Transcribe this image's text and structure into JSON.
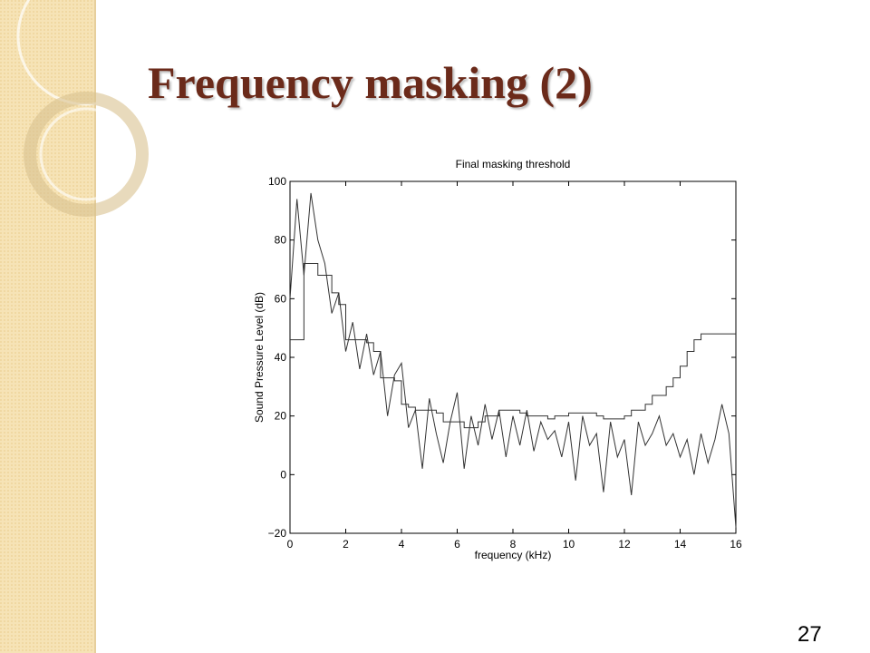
{
  "slide": {
    "title": "Frequency masking (2)",
    "page_number": "27"
  },
  "chart_data": {
    "type": "line",
    "title": "Final masking threshold",
    "xlabel": "frequency (kHz)",
    "ylabel": "Sound Pressure Level (dB)",
    "x": [
      0,
      0.25,
      0.5,
      0.75,
      1,
      1.25,
      1.5,
      1.75,
      2,
      2.25,
      2.5,
      2.75,
      3,
      3.25,
      3.5,
      3.75,
      4,
      4.25,
      4.5,
      4.75,
      5,
      5.25,
      5.5,
      5.75,
      6,
      6.25,
      6.5,
      6.75,
      7,
      7.25,
      7.5,
      7.75,
      8,
      8.25,
      8.5,
      8.75,
      9,
      9.25,
      9.5,
      9.75,
      10,
      10.25,
      10.5,
      10.75,
      11,
      11.25,
      11.5,
      11.75,
      12,
      12.25,
      12.5,
      12.75,
      13,
      13.25,
      13.5,
      13.75,
      14,
      14.25,
      14.5,
      14.75,
      15,
      15.25,
      15.5,
      15.75,
      16
    ],
    "series": [
      {
        "color": "#333333",
        "drawstyle": "steps-post",
        "values": [
          46,
          46,
          72,
          72,
          68,
          68,
          62,
          58,
          46,
          46,
          46,
          45,
          42,
          33,
          33,
          32,
          24,
          23,
          22,
          22,
          22,
          21,
          18,
          18,
          18,
          16,
          16,
          18,
          20,
          20,
          22,
          22,
          22,
          21,
          20,
          20,
          20,
          19,
          20,
          20,
          21,
          21,
          21,
          21,
          20,
          19,
          19,
          19,
          20,
          22,
          22,
          24,
          27,
          27,
          30,
          33,
          37,
          42,
          46,
          48,
          48,
          48,
          48,
          48,
          48
        ]
      },
      {
        "color": "#333333",
        "drawstyle": "linear",
        "values": [
          60,
          94,
          68,
          96,
          80,
          72,
          55,
          62,
          42,
          52,
          36,
          48,
          34,
          42,
          20,
          34,
          38,
          16,
          22,
          2,
          26,
          14,
          4,
          18,
          28,
          2,
          20,
          10,
          24,
          12,
          22,
          6,
          20,
          10,
          22,
          8,
          18,
          12,
          15,
          6,
          18,
          -2,
          20,
          10,
          14,
          -6,
          18,
          6,
          12,
          -7,
          18,
          10,
          14,
          20,
          10,
          14,
          6,
          12,
          0,
          14,
          4,
          12,
          24,
          14,
          -18
        ]
      }
    ],
    "xlim": [
      0,
      16
    ],
    "xticks": [
      0,
      2,
      4,
      6,
      8,
      10,
      12,
      14,
      16
    ],
    "ylim": [
      -20,
      100
    ],
    "yticks": [
      {
        "value": -20,
        "label": "−20"
      },
      0,
      20,
      40,
      60,
      80,
      100
    ]
  }
}
